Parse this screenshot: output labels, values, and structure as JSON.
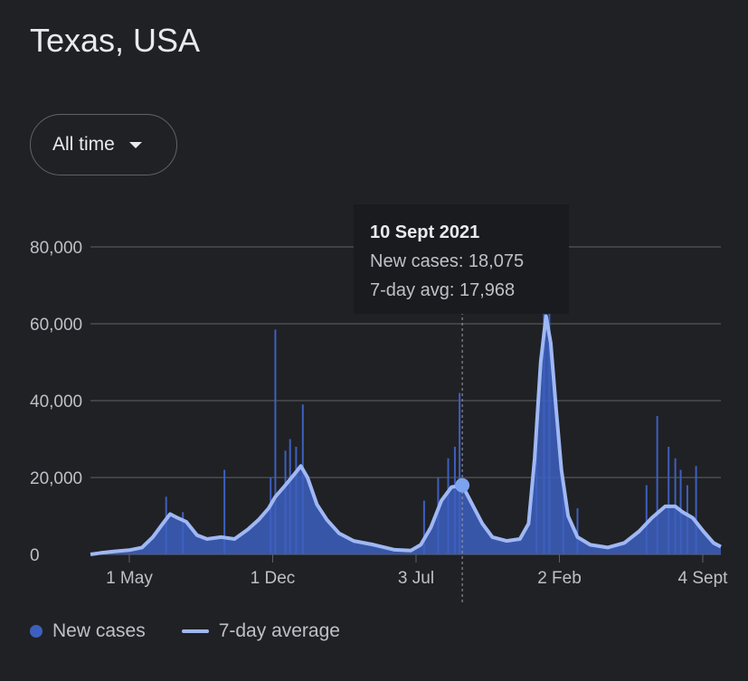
{
  "page": {
    "title": "Texas, USA",
    "range_selector": {
      "value": "All time"
    }
  },
  "tooltip": {
    "date": "10 Sept 2021",
    "new_cases_text": "New cases: 18,075",
    "avg_text": "7-day avg: 17,968"
  },
  "legend": {
    "new_cases": "New cases",
    "avg": "7-day average"
  },
  "colors": {
    "background": "#202124",
    "new_cases": "#3d5fbf",
    "avg_line": "#9fb8f5",
    "grid": "#5f6368"
  },
  "chart_data": {
    "type": "area",
    "title": "",
    "xlabel": "",
    "ylabel": "",
    "ylim": [
      0,
      80000
    ],
    "y_ticks": [
      0,
      20000,
      40000,
      60000,
      80000
    ],
    "y_tick_labels": [
      "0",
      "20,000",
      "40,000",
      "60,000",
      "80,000"
    ],
    "x_range": [
      "2020-03-04",
      "2022-10-01"
    ],
    "x_ticks": [
      {
        "date": "2020-05-01",
        "label": "1 May"
      },
      {
        "date": "2020-12-01",
        "label": "1 Dec"
      },
      {
        "date": "2021-07-03",
        "label": "3 Jul"
      },
      {
        "date": "2022-02-02",
        "label": "2 Feb"
      },
      {
        "date": "2022-09-04",
        "label": "4 Sept"
      }
    ],
    "series": [
      {
        "name": "7-day average",
        "points": [
          [
            "2020-03-04",
            0
          ],
          [
            "2020-03-20",
            400
          ],
          [
            "2020-04-10",
            800
          ],
          [
            "2020-05-01",
            1100
          ],
          [
            "2020-05-20",
            1800
          ],
          [
            "2020-06-05",
            4500
          ],
          [
            "2020-06-20",
            8000
          ],
          [
            "2020-07-01",
            10500
          ],
          [
            "2020-07-12",
            9500
          ],
          [
            "2020-07-25",
            8500
          ],
          [
            "2020-08-10",
            5000
          ],
          [
            "2020-08-25",
            4000
          ],
          [
            "2020-09-15",
            4500
          ],
          [
            "2020-10-05",
            4000
          ],
          [
            "2020-10-25",
            6500
          ],
          [
            "2020-11-10",
            9000
          ],
          [
            "2020-11-25",
            12000
          ],
          [
            "2020-12-05",
            15000
          ],
          [
            "2020-12-20",
            18000
          ],
          [
            "2021-01-03",
            21000
          ],
          [
            "2021-01-12",
            23000
          ],
          [
            "2021-01-22",
            20000
          ],
          [
            "2021-02-05",
            13000
          ],
          [
            "2021-02-20",
            9000
          ],
          [
            "2021-03-10",
            5500
          ],
          [
            "2021-04-01",
            3500
          ],
          [
            "2021-05-01",
            2500
          ],
          [
            "2021-06-01",
            1200
          ],
          [
            "2021-06-25",
            1000
          ],
          [
            "2021-07-10",
            2500
          ],
          [
            "2021-07-25",
            7000
          ],
          [
            "2021-08-10",
            14000
          ],
          [
            "2021-08-25",
            17500
          ],
          [
            "2021-09-10",
            17968
          ],
          [
            "2021-09-25",
            13000
          ],
          [
            "2021-10-10",
            8000
          ],
          [
            "2021-10-25",
            4500
          ],
          [
            "2021-11-15",
            3500
          ],
          [
            "2021-12-05",
            4000
          ],
          [
            "2021-12-18",
            8000
          ],
          [
            "2021-12-27",
            25000
          ],
          [
            "2022-01-05",
            50000
          ],
          [
            "2022-01-13",
            62000
          ],
          [
            "2022-01-20",
            55000
          ],
          [
            "2022-01-28",
            38000
          ],
          [
            "2022-02-05",
            22000
          ],
          [
            "2022-02-15",
            10000
          ],
          [
            "2022-03-01",
            4500
          ],
          [
            "2022-03-20",
            2500
          ],
          [
            "2022-04-15",
            1800
          ],
          [
            "2022-05-10",
            3000
          ],
          [
            "2022-06-01",
            6000
          ],
          [
            "2022-06-20",
            9500
          ],
          [
            "2022-07-10",
            12500
          ],
          [
            "2022-07-25",
            12500
          ],
          [
            "2022-08-05",
            11000
          ],
          [
            "2022-08-20",
            9500
          ],
          [
            "2022-09-05",
            6000
          ],
          [
            "2022-09-20",
            3000
          ],
          [
            "2022-10-01",
            2000
          ]
        ]
      },
      {
        "name": "New cases",
        "peaks": [
          [
            "2020-06-25",
            15000
          ],
          [
            "2020-07-20",
            11000
          ],
          [
            "2020-09-20",
            22000
          ],
          [
            "2020-11-28",
            20000
          ],
          [
            "2020-12-05",
            58500
          ],
          [
            "2020-12-20",
            27000
          ],
          [
            "2020-12-27",
            30000
          ],
          [
            "2021-01-05",
            28000
          ],
          [
            "2021-01-15",
            39000
          ],
          [
            "2021-07-15",
            14000
          ],
          [
            "2021-08-05",
            20000
          ],
          [
            "2021-08-20",
            25000
          ],
          [
            "2021-08-30",
            28000
          ],
          [
            "2021-09-06",
            42000
          ],
          [
            "2021-12-30",
            30000
          ],
          [
            "2022-01-10",
            75000
          ],
          [
            "2022-01-18",
            66000
          ],
          [
            "2022-02-08",
            15000
          ],
          [
            "2022-03-01",
            12000
          ],
          [
            "2022-06-12",
            18000
          ],
          [
            "2022-06-28",
            36000
          ],
          [
            "2022-07-15",
            28000
          ],
          [
            "2022-07-25",
            25000
          ],
          [
            "2022-08-02",
            22000
          ],
          [
            "2022-08-12",
            18000
          ],
          [
            "2022-08-25",
            23000
          ]
        ]
      }
    ],
    "highlight": {
      "date": "2021-09-10",
      "new_cases": 18075,
      "avg": 17968
    }
  }
}
